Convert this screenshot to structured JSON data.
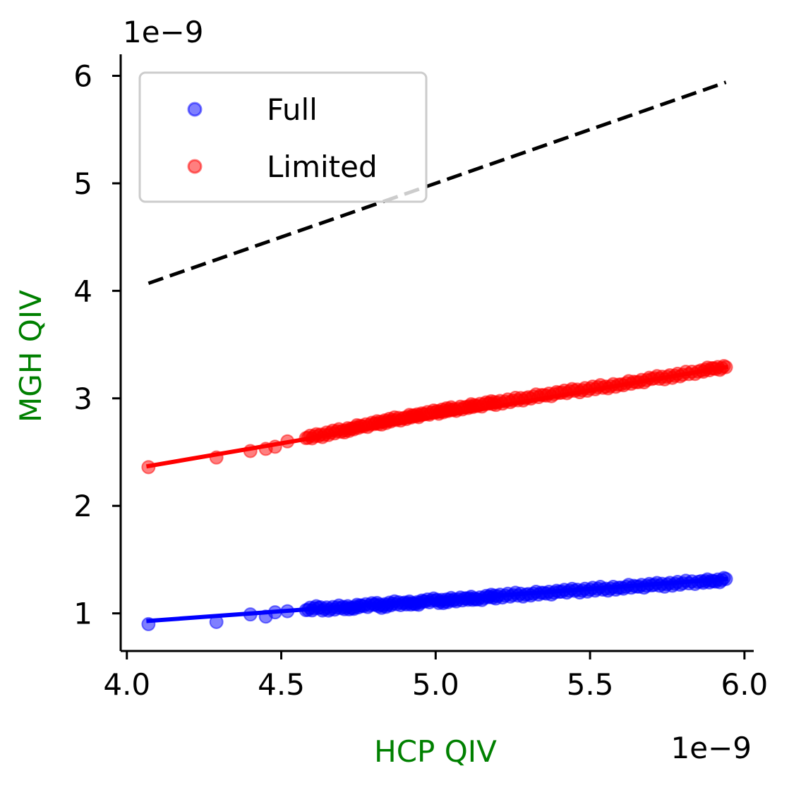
{
  "chart_data": {
    "type": "scatter",
    "xlabel": "HCP QIV",
    "ylabel": "MGH QIV",
    "xlabel_color": "#008000",
    "ylabel_color": "#008000",
    "x_offset_label": "1e−9",
    "y_offset_label": "1e−9",
    "xlim": [
      3.98,
      6.03
    ],
    "ylim": [
      0.65,
      6.2
    ],
    "xticks": [
      4.0,
      4.5,
      5.0,
      5.5,
      6.0
    ],
    "xtick_labels": [
      "4.0",
      "4.5",
      "5.0",
      "5.5",
      "6.0"
    ],
    "yticks": [
      1,
      2,
      3,
      4,
      5,
      6
    ],
    "ytick_labels": [
      "1",
      "2",
      "3",
      "4",
      "5",
      "6"
    ],
    "legend": {
      "placement": "top-left",
      "entries": [
        "Full",
        "Limited"
      ]
    },
    "series": [
      {
        "name": "Full",
        "color": "#0000ff",
        "points": [
          [
            4.07,
            0.9
          ],
          [
            4.29,
            0.92
          ],
          [
            4.4,
            0.99
          ],
          [
            4.45,
            0.97
          ],
          [
            4.48,
            1.01
          ],
          [
            4.52,
            1.02
          ],
          [
            4.58,
            1.03
          ],
          [
            4.62,
            1.05
          ],
          [
            4.66,
            1.04
          ],
          [
            4.7,
            1.06
          ],
          [
            4.73,
            1.05
          ],
          [
            4.76,
            1.07
          ],
          [
            4.8,
            1.08
          ],
          [
            4.83,
            1.07
          ],
          [
            4.86,
            1.09
          ],
          [
            4.9,
            1.1
          ],
          [
            4.93,
            1.09
          ],
          [
            4.96,
            1.11
          ],
          [
            5.0,
            1.12
          ],
          [
            5.03,
            1.11
          ],
          [
            5.06,
            1.13
          ],
          [
            5.1,
            1.14
          ],
          [
            5.13,
            1.13
          ],
          [
            5.17,
            1.15
          ],
          [
            5.2,
            1.16
          ],
          [
            5.25,
            1.17
          ],
          [
            5.3,
            1.18
          ],
          [
            5.35,
            1.19
          ],
          [
            5.4,
            1.2
          ],
          [
            5.45,
            1.21
          ],
          [
            5.5,
            1.22
          ],
          [
            5.55,
            1.23
          ],
          [
            5.6,
            1.24
          ],
          [
            5.65,
            1.25
          ],
          [
            5.7,
            1.26
          ],
          [
            5.75,
            1.27
          ],
          [
            5.8,
            1.28
          ],
          [
            5.86,
            1.3
          ],
          [
            5.9,
            1.3
          ],
          [
            5.94,
            1.32
          ]
        ],
        "fit_line": [
          [
            4.07,
            0.93
          ],
          [
            5.94,
            1.32
          ]
        ]
      },
      {
        "name": "Limited",
        "color": "#ff0000",
        "points": [
          [
            4.07,
            2.36
          ],
          [
            4.29,
            2.45
          ],
          [
            4.4,
            2.51
          ],
          [
            4.45,
            2.53
          ],
          [
            4.48,
            2.55
          ],
          [
            4.52,
            2.6
          ],
          [
            4.58,
            2.63
          ],
          [
            4.62,
            2.65
          ],
          [
            4.66,
            2.68
          ],
          [
            4.7,
            2.7
          ],
          [
            4.73,
            2.72
          ],
          [
            4.76,
            2.74
          ],
          [
            4.8,
            2.76
          ],
          [
            4.83,
            2.78
          ],
          [
            4.86,
            2.8
          ],
          [
            4.9,
            2.82
          ],
          [
            4.93,
            2.84
          ],
          [
            4.96,
            2.85
          ],
          [
            5.0,
            2.87
          ],
          [
            5.03,
            2.89
          ],
          [
            5.06,
            2.9
          ],
          [
            5.1,
            2.92
          ],
          [
            5.13,
            2.93
          ],
          [
            5.17,
            2.95
          ],
          [
            5.2,
            2.96
          ],
          [
            5.25,
            2.98
          ],
          [
            5.3,
            3.01
          ],
          [
            5.35,
            3.03
          ],
          [
            5.4,
            3.05
          ],
          [
            5.45,
            3.07
          ],
          [
            5.5,
            3.09
          ],
          [
            5.55,
            3.11
          ],
          [
            5.6,
            3.13
          ],
          [
            5.65,
            3.15
          ],
          [
            5.7,
            3.18
          ],
          [
            5.75,
            3.2
          ],
          [
            5.8,
            3.22
          ],
          [
            5.86,
            3.26
          ],
          [
            5.9,
            3.28
          ],
          [
            5.94,
            3.29
          ]
        ],
        "fit_line": [
          [
            4.07,
            2.37
          ],
          [
            5.94,
            3.29
          ]
        ]
      }
    ],
    "reference_line": {
      "style": "dashed",
      "color": "#000000",
      "points": [
        [
          4.07,
          4.07
        ],
        [
          5.94,
          5.94
        ]
      ]
    }
  }
}
